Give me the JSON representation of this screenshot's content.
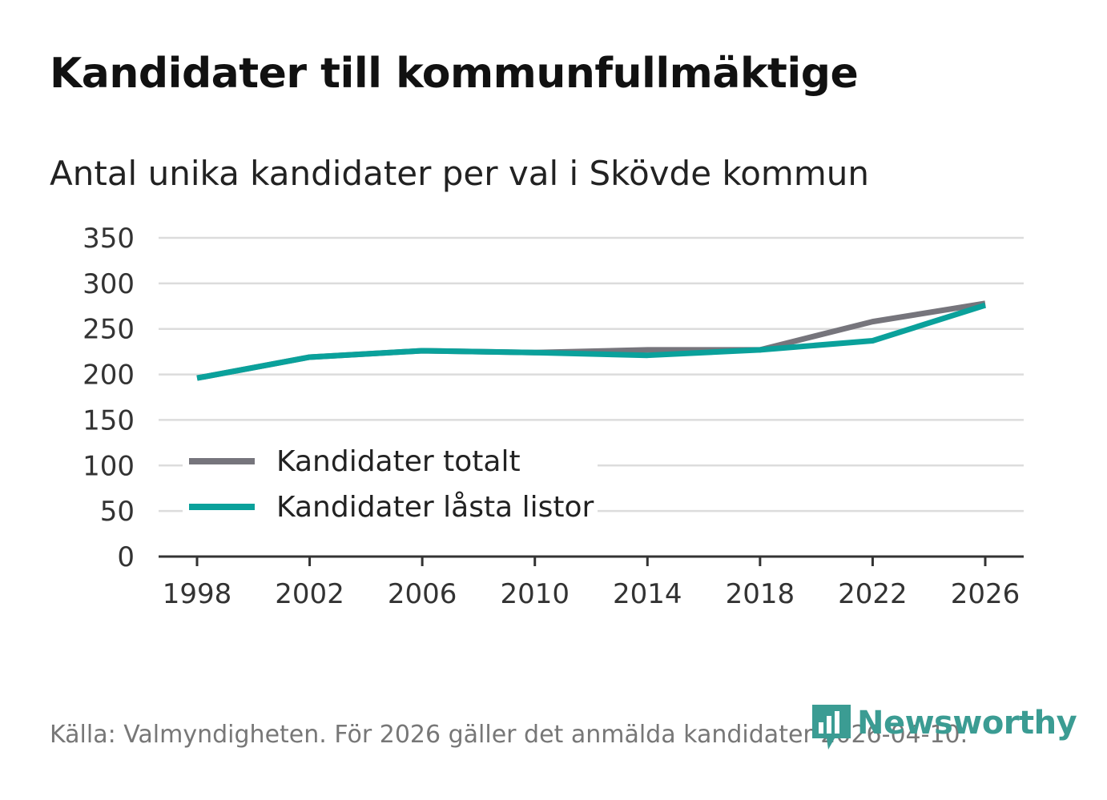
{
  "header": {
    "title": "Kandidater till kommunfullmäktige",
    "subtitle": "Antal unika kandidater per val i Skövde kommun"
  },
  "footer": {
    "source": "Källa: Valmyndigheten. För 2026 gäller det anmälda kandidater 2026-04-10.",
    "logo_text": "Newsworthy",
    "logo_icon": "bar-chart-speech-bubble-icon"
  },
  "colors": {
    "series_total": "#76757c",
    "series_locked": "#0aa19b",
    "grid": "#dcdcdc",
    "axis": "#333333",
    "brand": "#3b9c93"
  },
  "chart_data": {
    "type": "line",
    "title": "Kandidater till kommunfullmäktige",
    "subtitle": "Antal unika kandidater per val i Skövde kommun",
    "x": [
      1998,
      2002,
      2006,
      2010,
      2014,
      2018,
      2022,
      2026
    ],
    "xticks": [
      "1998",
      "2002",
      "2006",
      "2010",
      "2014",
      "2018",
      "2022",
      "2026"
    ],
    "yticks": [
      0,
      50,
      100,
      150,
      200,
      250,
      300,
      350
    ],
    "ylim": [
      0,
      350
    ],
    "grid": true,
    "legend_position": "bottom-left",
    "series": [
      {
        "name": "Kandidater totalt",
        "values": [
          196,
          219,
          226,
          224,
          227,
          227,
          258,
          278
        ]
      },
      {
        "name": "Kandidater låsta listor",
        "values": [
          196,
          219,
          226,
          224,
          221,
          227,
          237,
          276
        ]
      }
    ]
  }
}
